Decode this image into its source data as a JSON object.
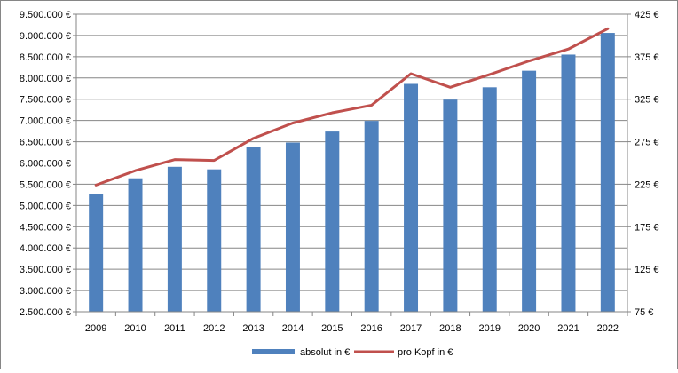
{
  "chart_data": {
    "type": "bar",
    "categories": [
      "2009",
      "2010",
      "2011",
      "2012",
      "2013",
      "2014",
      "2015",
      "2016",
      "2017",
      "2018",
      "2019",
      "2020",
      "2021",
      "2022"
    ],
    "series": [
      {
        "name": "absolut in €",
        "type": "bar",
        "axis": "left",
        "color": "#4F81BD",
        "values": [
          5260000,
          5640000,
          5910000,
          5850000,
          6370000,
          6480000,
          6740000,
          6990000,
          7860000,
          7490000,
          7780000,
          8170000,
          8550000,
          9060000
        ]
      },
      {
        "name": "pro Kopf in €",
        "type": "line",
        "axis": "right",
        "color": "#C0504D",
        "values": [
          224,
          241,
          254,
          253,
          279,
          297,
          309,
          318,
          355,
          339,
          354,
          370,
          384,
          408
        ]
      }
    ],
    "y_left": {
      "min": 2500000,
      "max": 9500000,
      "ticks": [
        "2.500.000 €",
        "3.000.000 €",
        "3.500.000 €",
        "4.000.000 €",
        "4.500.000 €",
        "5.000.000 €",
        "5.500.000 €",
        "6.000.000 €",
        "6.500.000 €",
        "7.000.000 €",
        "7.500.000 €",
        "8.000.000 €",
        "8.500.000 €",
        "9.000.000 €",
        "9.500.000 €"
      ]
    },
    "y_right": {
      "min": 75,
      "max": 425,
      "ticks": [
        "75 €",
        "125 €",
        "175 €",
        "225 €",
        "275 €",
        "325 €",
        "375 €",
        "425 €"
      ]
    },
    "grid": true,
    "legend_position": "bottom"
  },
  "legend": {
    "bar_label": "absolut in €",
    "line_label": "pro Kopf in €"
  }
}
